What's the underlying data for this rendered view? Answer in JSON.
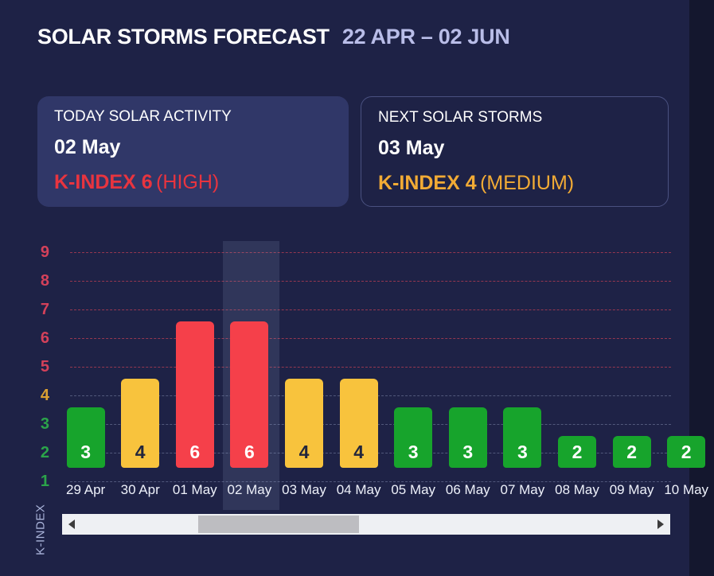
{
  "header": {
    "title": "SOLAR STORMS FORECAST",
    "range": "22 APR – 02 JUN"
  },
  "cards": {
    "today": {
      "label": "TODAY SOLAR ACTIVITY",
      "date": "02 May",
      "kindex": "K-INDEX 6",
      "level": "(HIGH)",
      "accent_color": "#e8343f"
    },
    "next": {
      "label": "NEXT SOLAR STORMS",
      "date": "03 May",
      "kindex": "K-INDEX 4",
      "level": "(MEDIUM)",
      "accent_color": "#f2ab35"
    }
  },
  "chart_data": {
    "type": "bar",
    "title": "",
    "xlabel": "",
    "ylabel": "K-INDEX",
    "ylim": [
      1,
      9
    ],
    "yticks": [
      1,
      2,
      3,
      4,
      5,
      6,
      7,
      8,
      9
    ],
    "grid": "horizontal-dashed",
    "legend_position": "none",
    "categories": [
      "29 Apr",
      "30 Apr",
      "01 May",
      "02 May",
      "03 May",
      "04 May",
      "05 May",
      "06 May",
      "07 May",
      "08 May",
      "09 May",
      "10 May"
    ],
    "values": [
      3,
      4,
      6,
      6,
      4,
      4,
      3,
      3,
      3,
      2,
      2,
      2
    ],
    "levels": [
      "low",
      "medium",
      "high",
      "high",
      "medium",
      "medium",
      "low",
      "low",
      "low",
      "low",
      "low",
      "low"
    ],
    "highlighted_category": "02 May",
    "highlight_index": 3,
    "palette": {
      "low": "#17a42c",
      "medium": "#f8c33d",
      "high": "#f5404a"
    },
    "tick_colors": {
      "low": "#2ba44a",
      "medium": "#dba032",
      "high": "#d4415a"
    },
    "value_label_colors": {
      "low": "#ffffff",
      "medium": "#22263c",
      "high": "#ffffff"
    }
  },
  "scrollbar": {
    "thumb_left_pct": 22.4,
    "thumb_width_pct": 26.4
  }
}
